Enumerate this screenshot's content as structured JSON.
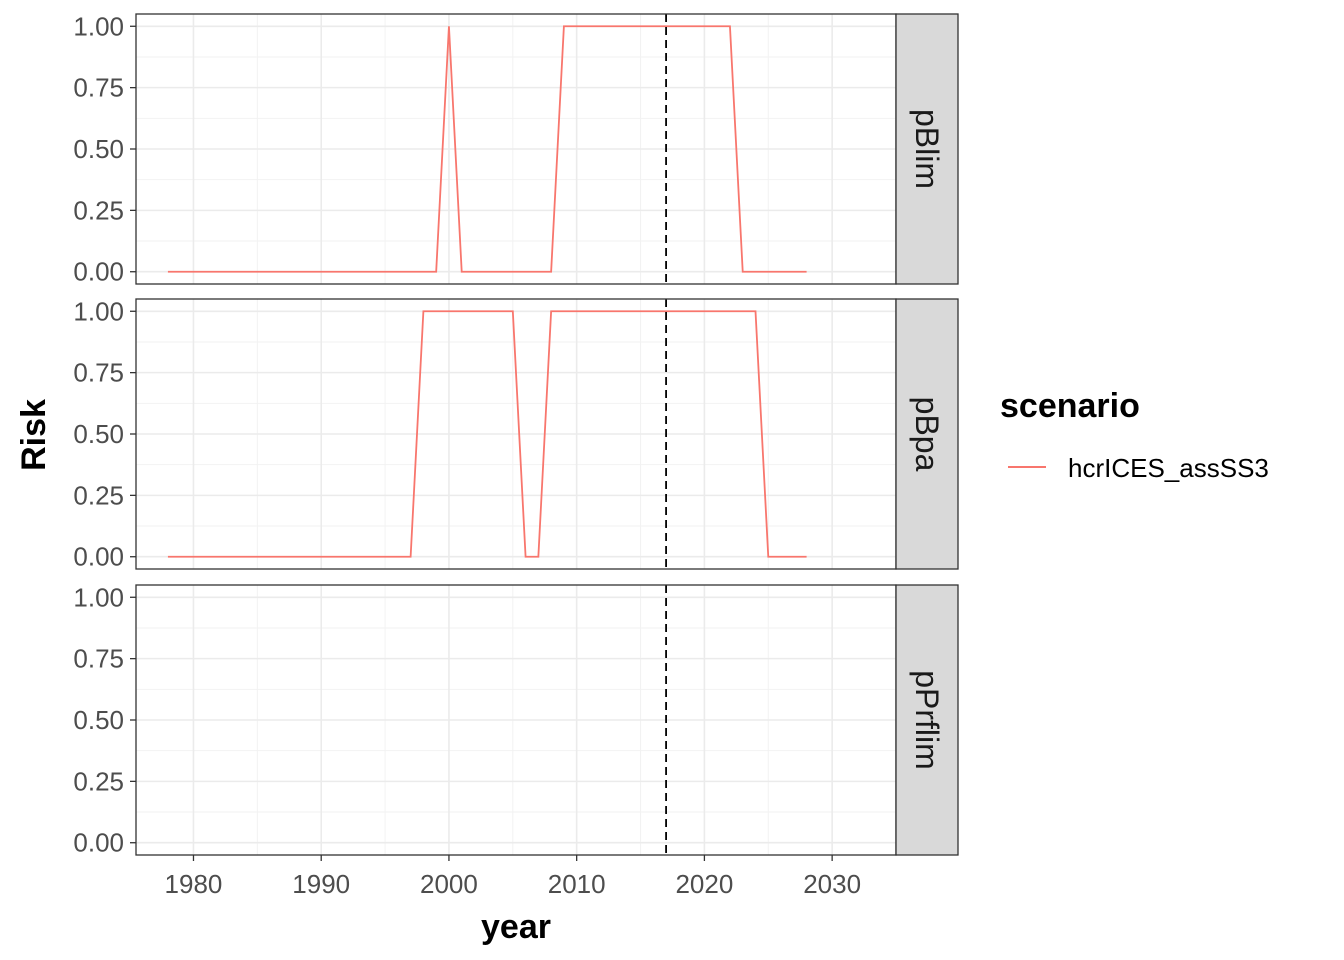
{
  "chart_data": {
    "type": "line",
    "xlabel": "year",
    "ylabel": "Risk",
    "xlim": [
      1975.5,
      2035
    ],
    "ylim": [
      -0.05,
      1.05
    ],
    "x_ticks": [
      1980,
      1990,
      2000,
      2010,
      2020,
      2030
    ],
    "x_tick_labels": [
      "1980",
      "1990",
      "2000",
      "2010",
      "2020",
      "2030"
    ],
    "y_ticks": [
      0,
      0.25,
      0.5,
      0.75,
      1.0
    ],
    "y_tick_labels": [
      "0.00",
      "0.25",
      "0.50",
      "0.75",
      "1.00"
    ],
    "grid": true,
    "vline": {
      "x": 2017,
      "style": "dashed",
      "color": "#000000"
    },
    "legend": {
      "title": "scenario",
      "placement": "right",
      "entries": [
        {
          "label": "hcrICES_assSS3",
          "color": "#F8766D"
        }
      ]
    },
    "facets": [
      {
        "label": "pBlim",
        "series": [
          {
            "name": "hcrICES_assSS3",
            "color": "#F8766D",
            "x": [
              1978,
              1999,
              2000,
              2001,
              2008,
              2009,
              2022,
              2023,
              2028
            ],
            "y": [
              0,
              0,
              1,
              0,
              0,
              1,
              1,
              0,
              0
            ]
          }
        ]
      },
      {
        "label": "pBpa",
        "series": [
          {
            "name": "hcrICES_assSS3",
            "color": "#F8766D",
            "x": [
              1978,
              1997,
              1998,
              2005,
              2006,
              2007,
              2008,
              2024,
              2025,
              2028
            ],
            "y": [
              0,
              0,
              1,
              1,
              0,
              0,
              1,
              1,
              0,
              0
            ]
          }
        ]
      },
      {
        "label": "pPrflim",
        "series": []
      }
    ]
  }
}
